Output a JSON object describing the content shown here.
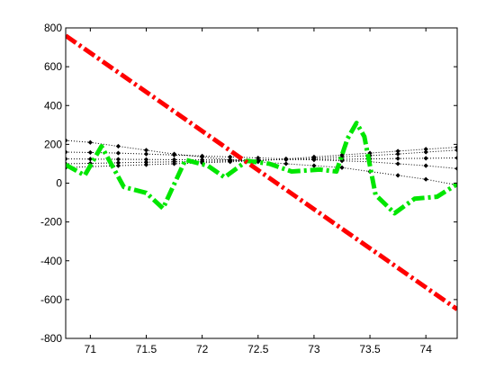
{
  "chart_data": {
    "type": "line",
    "title": "",
    "xlabel": "",
    "ylabel": "",
    "xlim": [
      70.78,
      74.28
    ],
    "ylim": [
      -800,
      800
    ],
    "grid": false,
    "legend": "none",
    "x_ticks": [
      71,
      71.5,
      72,
      72.5,
      73,
      73.5,
      74
    ],
    "x_tick_labels": [
      "71",
      "71.5",
      "72",
      "72.5",
      "73",
      "73.5",
      "74"
    ],
    "y_ticks": [
      -800,
      -600,
      -400,
      -200,
      0,
      200,
      400,
      600,
      800
    ],
    "y_tick_labels": [
      "-800",
      "-600",
      "-400",
      "-200",
      "0",
      "200",
      "400",
      "600",
      "800"
    ],
    "series": [
      {
        "color": "#ff0000",
        "style": "dash-dot-thick",
        "x": [
          70.78,
          74.28
        ],
        "y": [
          760,
          -650
        ]
      },
      {
        "color": "#00e600",
        "style": "dash-dot-thick",
        "x": [
          70.78,
          70.95,
          71.1,
          71.3,
          71.5,
          71.65,
          71.85,
          72.05,
          72.2,
          72.4,
          72.6,
          72.8,
          73.05,
          73.2,
          73.3,
          73.38,
          73.45,
          73.55,
          73.72,
          73.9,
          74.1,
          74.28
        ],
        "y": [
          95,
          40,
          190,
          -20,
          -50,
          -130,
          120,
          90,
          30,
          115,
          100,
          60,
          70,
          60,
          230,
          310,
          240,
          -60,
          -155,
          -80,
          -70,
          -5
        ]
      },
      {
        "color": "#000000",
        "style": "dotted-diamond",
        "x": [
          70.78,
          71,
          71.25,
          71.5,
          71.75,
          72,
          72.25,
          72.5,
          72.75,
          73,
          73.25,
          73.5,
          73.75,
          74,
          74.28
        ],
        "y": [
          220,
          210,
          190,
          170,
          150,
          135,
          120,
          110,
          100,
          90,
          80,
          60,
          40,
          20,
          -10
        ]
      },
      {
        "color": "#000000",
        "style": "dotted-diamond",
        "x": [
          70.78,
          71,
          71.25,
          71.5,
          71.75,
          72,
          72.25,
          72.5,
          72.75,
          73,
          73.25,
          73.5,
          73.75,
          74,
          74.28
        ],
        "y": [
          160,
          158,
          155,
          150,
          145,
          140,
          135,
          130,
          125,
          120,
          115,
          110,
          100,
          90,
          75
        ]
      },
      {
        "color": "#000000",
        "style": "dotted-diamond",
        "x": [
          70.78,
          71,
          71.25,
          71.5,
          71.75,
          72,
          72.25,
          72.5,
          72.75,
          73,
          73.25,
          73.5,
          73.75,
          74,
          74.28
        ],
        "y": [
          125,
          124,
          123,
          122,
          121,
          120,
          120,
          120,
          121,
          122,
          123,
          125,
          127,
          128,
          130
        ]
      },
      {
        "color": "#000000",
        "style": "dotted-diamond",
        "x": [
          70.78,
          71,
          71.25,
          71.5,
          71.75,
          72,
          72.25,
          72.5,
          72.75,
          73,
          73.25,
          73.5,
          73.75,
          74,
          74.28
        ],
        "y": [
          100,
          102,
          105,
          108,
          110,
          112,
          115,
          118,
          122,
          128,
          135,
          142,
          150,
          160,
          170
        ]
      },
      {
        "color": "#000000",
        "style": "dotted-diamond",
        "x": [
          70.78,
          71,
          71.25,
          71.5,
          71.75,
          72,
          72.25,
          72.5,
          72.75,
          73,
          73.25,
          73.5,
          73.75,
          74,
          74.28
        ],
        "y": [
          80,
          85,
          90,
          95,
          100,
          105,
          110,
          115,
          125,
          135,
          145,
          155,
          165,
          175,
          185
        ]
      }
    ]
  }
}
